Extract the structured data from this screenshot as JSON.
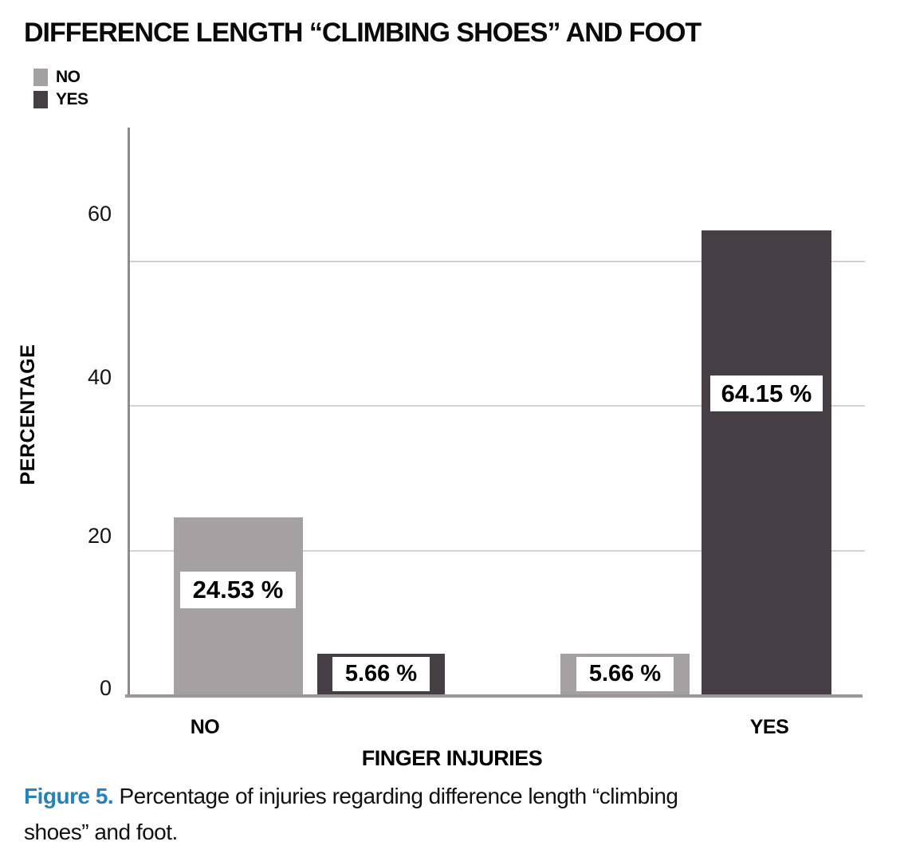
{
  "figure": {
    "title": "DIFFERENCE LENGTH “CLIMBING SHOES” AND FOOT",
    "caption_label": "Figure 5.",
    "caption_line1": " Percentage of injuries regarding difference length “climbing",
    "caption_line2": "shoes” and foot."
  },
  "chart_data": {
    "type": "bar",
    "title": "DIFFERENCE LENGTH “CLIMBING SHOES” AND FOOT",
    "xlabel": "FINGER INJURIES",
    "ylabel": "PERCENTAGE",
    "categories": [
      "NO",
      "YES"
    ],
    "series": [
      {
        "name": "NO",
        "color": "#a5a1a2",
        "values": [
          24.53,
          5.66
        ]
      },
      {
        "name": "YES",
        "color": "#453e44",
        "values": [
          5.66,
          64.15
        ]
      }
    ],
    "bars": [
      {
        "category": "NO",
        "series": "NO",
        "value": 24.53,
        "label": "24.53 %"
      },
      {
        "category": "NO",
        "series": "YES",
        "value": 5.66,
        "label": "5.66 %"
      },
      {
        "category": "YES",
        "series": "NO",
        "value": 5.66,
        "label": "5.66 %"
      },
      {
        "category": "YES",
        "series": "YES",
        "value": 64.15,
        "label": "64.15 %"
      }
    ],
    "yticks": [
      0,
      20,
      40,
      60
    ],
    "ylim": [
      0,
      70
    ],
    "grid": "horizontal",
    "legend_position": "top-left",
    "value_label_format": "white box with percent value inside each bar"
  },
  "colors": {
    "bar_no": "#a5a1a2",
    "bar_yes": "#453e44",
    "gridline": "#d4d1d2",
    "axis_line": "#8f8b8d",
    "baseline": "#9c989a",
    "caption_accent": "#2484ba",
    "value_box_bg": "#ffffff",
    "text": "#000000"
  }
}
